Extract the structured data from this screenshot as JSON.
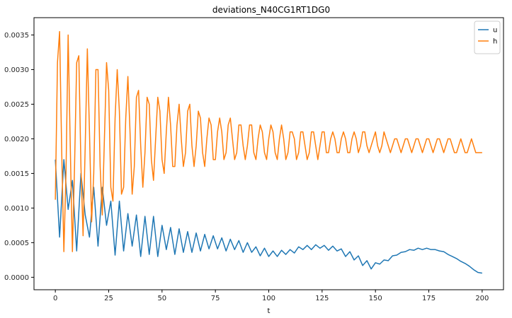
{
  "chart_data": {
    "type": "line",
    "title": "deviations_N40CG1RT1DG0",
    "xlabel": "t",
    "ylabel": "",
    "xlim": [
      -10,
      210
    ],
    "ylim": [
      -0.00018,
      0.00375
    ],
    "xticks": [
      0,
      25,
      50,
      75,
      100,
      125,
      150,
      175,
      200
    ],
    "yticks": [
      0.0,
      0.0005,
      0.001,
      0.0015,
      0.002,
      0.0025,
      0.003,
      0.0035
    ],
    "xtick_labels": [
      "0",
      "25",
      "50",
      "75",
      "100",
      "125",
      "150",
      "175",
      "200"
    ],
    "ytick_labels": [
      "0.0000",
      "0.0005",
      "0.0010",
      "0.0015",
      "0.0020",
      "0.0025",
      "0.0030",
      "0.0035"
    ],
    "grid": false,
    "legend_position": "top-right",
    "series": [
      {
        "name": "u",
        "color": "#1f77b4",
        "points": [
          [
            0,
            0.0017
          ],
          [
            2,
            0.00058
          ],
          [
            4,
            0.0017
          ],
          [
            6,
            0.00098
          ],
          [
            8,
            0.0014
          ],
          [
            10,
            0.00038
          ],
          [
            12,
            0.0015
          ],
          [
            14,
            0.0009
          ],
          [
            16,
            0.00058
          ],
          [
            18,
            0.0013
          ],
          [
            20,
            0.00045
          ],
          [
            22,
            0.0013
          ],
          [
            24,
            0.00075
          ],
          [
            26,
            0.0011
          ],
          [
            28,
            0.00032
          ],
          [
            30,
            0.0011
          ],
          [
            32,
            0.00038
          ],
          [
            34,
            0.00092
          ],
          [
            36,
            0.00045
          ],
          [
            38,
            0.0009
          ],
          [
            40,
            0.0003
          ],
          [
            42,
            0.00088
          ],
          [
            44,
            0.00033
          ],
          [
            46,
            0.00088
          ],
          [
            48,
            0.0003
          ],
          [
            50,
            0.00075
          ],
          [
            52,
            0.0004
          ],
          [
            54,
            0.00072
          ],
          [
            56,
            0.00033
          ],
          [
            58,
            0.0007
          ],
          [
            60,
            0.00036
          ],
          [
            62,
            0.00066
          ],
          [
            64,
            0.00036
          ],
          [
            66,
            0.00064
          ],
          [
            68,
            0.00038
          ],
          [
            70,
            0.00062
          ],
          [
            72,
            0.00041
          ],
          [
            74,
            0.0006
          ],
          [
            76,
            0.00041
          ],
          [
            78,
            0.00057
          ],
          [
            80,
            0.00038
          ],
          [
            82,
            0.00055
          ],
          [
            84,
            0.0004
          ],
          [
            86,
            0.00053
          ],
          [
            88,
            0.00036
          ],
          [
            90,
            0.0005
          ],
          [
            92,
            0.00036
          ],
          [
            94,
            0.00044
          ],
          [
            96,
            0.00031
          ],
          [
            98,
            0.00042
          ],
          [
            100,
            0.0003
          ],
          [
            102,
            0.00038
          ],
          [
            104,
            0.0003
          ],
          [
            106,
            0.00039
          ],
          [
            108,
            0.00033
          ],
          [
            110,
            0.0004
          ],
          [
            112,
            0.00035
          ],
          [
            114,
            0.00044
          ],
          [
            116,
            0.0004
          ],
          [
            118,
            0.00046
          ],
          [
            120,
            0.0004
          ],
          [
            122,
            0.00047
          ],
          [
            124,
            0.00042
          ],
          [
            126,
            0.00046
          ],
          [
            128,
            0.00039
          ],
          [
            130,
            0.00045
          ],
          [
            132,
            0.00038
          ],
          [
            134,
            0.00041
          ],
          [
            136,
            0.0003
          ],
          [
            138,
            0.00037
          ],
          [
            140,
            0.00025
          ],
          [
            142,
            0.00031
          ],
          [
            144,
            0.00017
          ],
          [
            146,
            0.00024
          ],
          [
            148,
            0.00012
          ],
          [
            150,
            0.00021
          ],
          [
            152,
            0.00019
          ],
          [
            154,
            0.00025
          ],
          [
            156,
            0.00024
          ],
          [
            158,
            0.00031
          ],
          [
            160,
            0.00032
          ],
          [
            162,
            0.00036
          ],
          [
            164,
            0.00037
          ],
          [
            166,
            0.0004
          ],
          [
            168,
            0.00039
          ],
          [
            170,
            0.00042
          ],
          [
            172,
            0.0004
          ],
          [
            174,
            0.00042
          ],
          [
            176,
            0.0004
          ],
          [
            178,
            0.0004
          ],
          [
            180,
            0.00038
          ],
          [
            182,
            0.00037
          ],
          [
            184,
            0.00033
          ],
          [
            186,
            0.0003
          ],
          [
            188,
            0.00027
          ],
          [
            190,
            0.00023
          ],
          [
            192,
            0.0002
          ],
          [
            194,
            0.00016
          ],
          [
            196,
            0.00011
          ],
          [
            198,
            7e-05
          ],
          [
            200,
            6e-05
          ]
        ]
      },
      {
        "name": "h",
        "color": "#ff7f0e",
        "points": [
          [
            0,
            0.00112
          ],
          [
            1,
            0.0031
          ],
          [
            2,
            0.00355
          ],
          [
            3,
            0.0018
          ],
          [
            4,
            0.00037
          ],
          [
            5,
            0.0015
          ],
          [
            6,
            0.0035
          ],
          [
            7,
            0.0019
          ],
          [
            8,
            0.00037
          ],
          [
            9,
            0.0016
          ],
          [
            10,
            0.0031
          ],
          [
            11,
            0.0032
          ],
          [
            12,
            0.0016
          ],
          [
            13,
            0.0006
          ],
          [
            14,
            0.0019
          ],
          [
            15,
            0.0033
          ],
          [
            16,
            0.0021
          ],
          [
            17,
            0.0008
          ],
          [
            18,
            0.0015
          ],
          [
            19,
            0.003
          ],
          [
            20,
            0.003
          ],
          [
            21,
            0.0016
          ],
          [
            22,
            0.0009
          ],
          [
            23,
            0.002
          ],
          [
            24,
            0.0031
          ],
          [
            25,
            0.0027
          ],
          [
            26,
            0.0013
          ],
          [
            27,
            0.0011
          ],
          [
            28,
            0.0023
          ],
          [
            29,
            0.003
          ],
          [
            30,
            0.0024
          ],
          [
            31,
            0.0012
          ],
          [
            32,
            0.0013
          ],
          [
            33,
            0.0023
          ],
          [
            34,
            0.0029
          ],
          [
            35,
            0.0021
          ],
          [
            36,
            0.0012
          ],
          [
            37,
            0.0016
          ],
          [
            38,
            0.0026
          ],
          [
            39,
            0.0027
          ],
          [
            40,
            0.0019
          ],
          [
            41,
            0.0013
          ],
          [
            42,
            0.0018
          ],
          [
            43,
            0.0026
          ],
          [
            44,
            0.0025
          ],
          [
            45,
            0.0017
          ],
          [
            46,
            0.0014
          ],
          [
            47,
            0.002
          ],
          [
            48,
            0.0026
          ],
          [
            49,
            0.0024
          ],
          [
            50,
            0.0017
          ],
          [
            51,
            0.0015
          ],
          [
            52,
            0.0021
          ],
          [
            53,
            0.0026
          ],
          [
            54,
            0.0022
          ],
          [
            55,
            0.0016
          ],
          [
            56,
            0.0016
          ],
          [
            57,
            0.0022
          ],
          [
            58,
            0.0025
          ],
          [
            59,
            0.002
          ],
          [
            60,
            0.0016
          ],
          [
            61,
            0.0018
          ],
          [
            62,
            0.0024
          ],
          [
            63,
            0.0025
          ],
          [
            64,
            0.0019
          ],
          [
            65,
            0.0016
          ],
          [
            66,
            0.0019
          ],
          [
            67,
            0.0024
          ],
          [
            68,
            0.0023
          ],
          [
            69,
            0.0018
          ],
          [
            70,
            0.0016
          ],
          [
            71,
            0.002
          ],
          [
            72,
            0.0023
          ],
          [
            73,
            0.0022
          ],
          [
            74,
            0.0017
          ],
          [
            75,
            0.0017
          ],
          [
            76,
            0.0021
          ],
          [
            77,
            0.0023
          ],
          [
            78,
            0.0021
          ],
          [
            79,
            0.0017
          ],
          [
            80,
            0.0018
          ],
          [
            81,
            0.0022
          ],
          [
            82,
            0.0023
          ],
          [
            83,
            0.002
          ],
          [
            84,
            0.0017
          ],
          [
            85,
            0.0018
          ],
          [
            86,
            0.0022
          ],
          [
            87,
            0.0022
          ],
          [
            88,
            0.0019
          ],
          [
            89,
            0.0017
          ],
          [
            90,
            0.0019
          ],
          [
            91,
            0.0022
          ],
          [
            92,
            0.0022
          ],
          [
            93,
            0.0018
          ],
          [
            94,
            0.0017
          ],
          [
            95,
            0.002
          ],
          [
            96,
            0.0022
          ],
          [
            97,
            0.0021
          ],
          [
            98,
            0.0018
          ],
          [
            99,
            0.0017
          ],
          [
            100,
            0.002
          ],
          [
            101,
            0.0022
          ],
          [
            102,
            0.0021
          ],
          [
            103,
            0.0018
          ],
          [
            104,
            0.0017
          ],
          [
            105,
            0.002
          ],
          [
            106,
            0.0022
          ],
          [
            107,
            0.002
          ],
          [
            108,
            0.0017
          ],
          [
            109,
            0.0018
          ],
          [
            110,
            0.0021
          ],
          [
            111,
            0.0021
          ],
          [
            112,
            0.002
          ],
          [
            113,
            0.0017
          ],
          [
            114,
            0.0018
          ],
          [
            115,
            0.0021
          ],
          [
            116,
            0.0021
          ],
          [
            117,
            0.0019
          ],
          [
            118,
            0.0017
          ],
          [
            119,
            0.0018
          ],
          [
            120,
            0.0021
          ],
          [
            121,
            0.0021
          ],
          [
            122,
            0.0019
          ],
          [
            123,
            0.0017
          ],
          [
            124,
            0.0019
          ],
          [
            125,
            0.0021
          ],
          [
            126,
            0.0021
          ],
          [
            127,
            0.0018
          ],
          [
            128,
            0.0018
          ],
          [
            129,
            0.002
          ],
          [
            130,
            0.0021
          ],
          [
            131,
            0.002
          ],
          [
            132,
            0.0018
          ],
          [
            133,
            0.0018
          ],
          [
            134,
            0.002
          ],
          [
            135,
            0.0021
          ],
          [
            136,
            0.002
          ],
          [
            137,
            0.0018
          ],
          [
            138,
            0.0018
          ],
          [
            139,
            0.002
          ],
          [
            140,
            0.0021
          ],
          [
            141,
            0.002
          ],
          [
            142,
            0.0018
          ],
          [
            143,
            0.0019
          ],
          [
            144,
            0.0021
          ],
          [
            145,
            0.0021
          ],
          [
            146,
            0.0019
          ],
          [
            147,
            0.0018
          ],
          [
            148,
            0.0019
          ],
          [
            149,
            0.002
          ],
          [
            150,
            0.0021
          ],
          [
            151,
            0.0019
          ],
          [
            152,
            0.0018
          ],
          [
            153,
            0.0019
          ],
          [
            154,
            0.0021
          ],
          [
            155,
            0.002
          ],
          [
            156,
            0.0019
          ],
          [
            157,
            0.0018
          ],
          [
            158,
            0.0019
          ],
          [
            159,
            0.002
          ],
          [
            160,
            0.002
          ],
          [
            161,
            0.0019
          ],
          [
            162,
            0.0018
          ],
          [
            163,
            0.0019
          ],
          [
            164,
            0.002
          ],
          [
            165,
            0.002
          ],
          [
            166,
            0.0019
          ],
          [
            167,
            0.0018
          ],
          [
            168,
            0.0019
          ],
          [
            169,
            0.002
          ],
          [
            170,
            0.002
          ],
          [
            171,
            0.0019
          ],
          [
            172,
            0.0018
          ],
          [
            173,
            0.0019
          ],
          [
            174,
            0.002
          ],
          [
            175,
            0.002
          ],
          [
            176,
            0.0019
          ],
          [
            177,
            0.0018
          ],
          [
            178,
            0.0019
          ],
          [
            179,
            0.002
          ],
          [
            180,
            0.002
          ],
          [
            181,
            0.0019
          ],
          [
            182,
            0.0018
          ],
          [
            183,
            0.0019
          ],
          [
            184,
            0.002
          ],
          [
            185,
            0.002
          ],
          [
            186,
            0.0019
          ],
          [
            187,
            0.0018
          ],
          [
            188,
            0.0018
          ],
          [
            189,
            0.0019
          ],
          [
            190,
            0.002
          ],
          [
            191,
            0.0019
          ],
          [
            192,
            0.0018
          ],
          [
            193,
            0.0018
          ],
          [
            194,
            0.0019
          ],
          [
            195,
            0.002
          ],
          [
            196,
            0.0019
          ],
          [
            197,
            0.0018
          ],
          [
            198,
            0.0018
          ],
          [
            199,
            0.0018
          ],
          [
            200,
            0.0018
          ]
        ]
      }
    ]
  }
}
